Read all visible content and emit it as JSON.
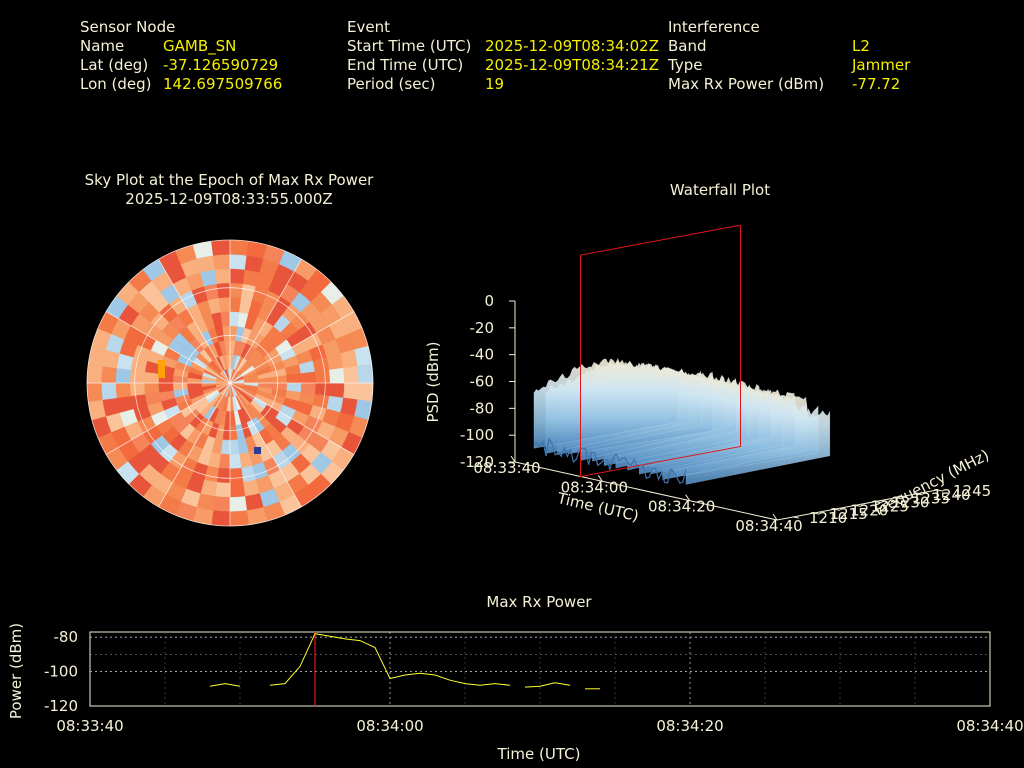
{
  "info": {
    "sensor": {
      "heading": "Sensor Node",
      "name_label": "Name",
      "name": "GAMB_SN",
      "lat_label": "Lat (deg)",
      "lat": "-37.126590729",
      "lon_label": "Lon (deg)",
      "lon": "142.697509766"
    },
    "event": {
      "heading": "Event",
      "start_label": "Start Time (UTC)",
      "start": "2025-12-09T08:34:02Z",
      "end_label": "End Time (UTC)",
      "end": "2025-12-09T08:34:21Z",
      "period_label": "Period (sec)",
      "period": "19"
    },
    "interference": {
      "heading": "Interference",
      "band_label": "Band",
      "band": "L2",
      "type_label": "Type",
      "type": "Jammer",
      "power_label": "Max Rx Power (dBm)",
      "power": "-77.72"
    }
  },
  "colors": {
    "background": "#000000",
    "text": "#f4f1d6",
    "value": "#f4f000",
    "marker": "#e0161b",
    "trace": "#ffff33"
  },
  "chart_data": [
    {
      "type": "heatmap",
      "projection": "polar",
      "title": "Sky Plot at the Epoch of Max Rx Power",
      "subtitle": "2025-12-09T08:33:55.000Z",
      "grid": true,
      "colormap": "blue-to-red",
      "rings": 3,
      "spokes": 12,
      "data_source": "approximate pattern — dominant warm (orange/red) values with scattered light-blue cells and one yellow-orange hot spot"
    },
    {
      "type": "area",
      "projection": "3d-surface",
      "title": "Waterfall Plot",
      "zlabel": "PSD (dBm)",
      "xlabel": "Time (UTC)",
      "ylabel": "Frequency (MHz)",
      "z_ticks": [
        "0",
        "-20",
        "-40",
        "-60",
        "-80",
        "-100",
        "-120"
      ],
      "zlim": [
        -120,
        0
      ],
      "x_ticks": [
        "08:33:40",
        "08:34:00",
        "08:34:20",
        "08:34:40"
      ],
      "y_ticks": [
        "1210",
        "1215",
        "1220",
        "1225",
        "1230",
        "1235",
        "1240",
        "1245"
      ],
      "ylim": [
        1210,
        1245
      ],
      "marker_time": "08:33:55",
      "surface_range_dbm": [
        -110,
        -40
      ]
    },
    {
      "type": "line",
      "title": "Max Rx Power",
      "xlabel": "Time (UTC)",
      "ylabel": "Power (dBm)",
      "x_ticks": [
        "08:33:40",
        "08:34:00",
        "08:34:20",
        "08:34:40"
      ],
      "y_ticks": [
        "-80",
        "-100",
        "-120"
      ],
      "xlim_sec": [
        0,
        60
      ],
      "ylim": [
        -120,
        -77
      ],
      "marker_sec": 15,
      "series": [
        {
          "segments": [
            [
              [
                8,
                -108.5
              ],
              [
                9,
                -107
              ],
              [
                10,
                -108.5
              ]
            ],
            [
              [
                12,
                -108
              ],
              [
                13,
                -107
              ],
              [
                14,
                -97
              ],
              [
                15,
                -78
              ],
              [
                16,
                -79.5
              ],
              [
                17,
                -81
              ],
              [
                18,
                -82
              ],
              [
                19,
                -86
              ],
              [
                20,
                -104
              ],
              [
                21,
                -102
              ],
              [
                22,
                -101
              ],
              [
                23,
                -102
              ],
              [
                24,
                -105
              ],
              [
                25,
                -107
              ],
              [
                26,
                -108
              ],
              [
                27,
                -107
              ],
              [
                28,
                -108
              ]
            ],
            [
              [
                29,
                -109
              ],
              [
                30,
                -108.5
              ],
              [
                31,
                -106.5
              ],
              [
                32,
                -108
              ]
            ],
            [
              [
                33,
                -110
              ],
              [
                34,
                -110
              ]
            ]
          ]
        }
      ]
    }
  ]
}
